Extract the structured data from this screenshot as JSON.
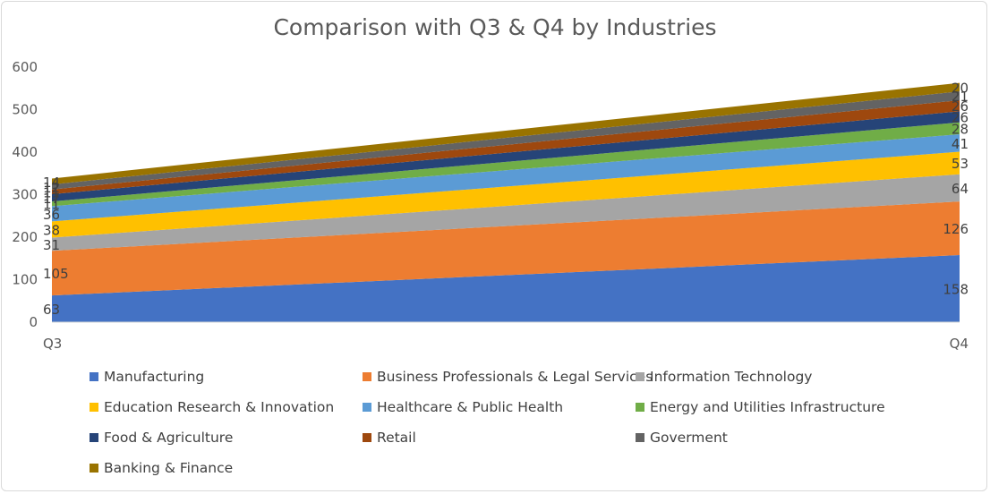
{
  "chart_data": {
    "type": "area",
    "stacked": true,
    "title": "Comparison with Q3 & Q4 by Industries",
    "categories": [
      "Q3",
      "Q4"
    ],
    "ylim": [
      0,
      600
    ],
    "yticks": [
      0,
      100,
      200,
      300,
      400,
      500,
      600
    ],
    "grid": false,
    "legend_position": "bottom",
    "series": [
      {
        "name": "Manufacturing",
        "values": [
          63,
          158
        ],
        "color": "#4472C4"
      },
      {
        "name": "Business Professionals & Legal Services",
        "values": [
          105,
          126
        ],
        "color": "#ED7D31"
      },
      {
        "name": "Information Technology",
        "values": [
          31,
          64
        ],
        "color": "#A5A5A5"
      },
      {
        "name": "Education Research & Innovation",
        "values": [
          38,
          53
        ],
        "color": "#FFC000"
      },
      {
        "name": "Healthcare & Public Health",
        "values": [
          36,
          41
        ],
        "color": "#5B9BD5"
      },
      {
        "name": "Energy and Utilities Infrastructure",
        "values": [
          11,
          28
        ],
        "color": "#70AD47"
      },
      {
        "name": "Food & Agriculture",
        "values": [
          17,
          26
        ],
        "color": "#264478"
      },
      {
        "name": "Retail",
        "values": [
          11,
          26
        ],
        "color": "#9E480E"
      },
      {
        "name": "Goverment",
        "values": [
          12,
          21
        ],
        "color": "#636363"
      },
      {
        "name": "Banking & Finance",
        "values": [
          14,
          20
        ],
        "color": "#997300"
      }
    ]
  }
}
